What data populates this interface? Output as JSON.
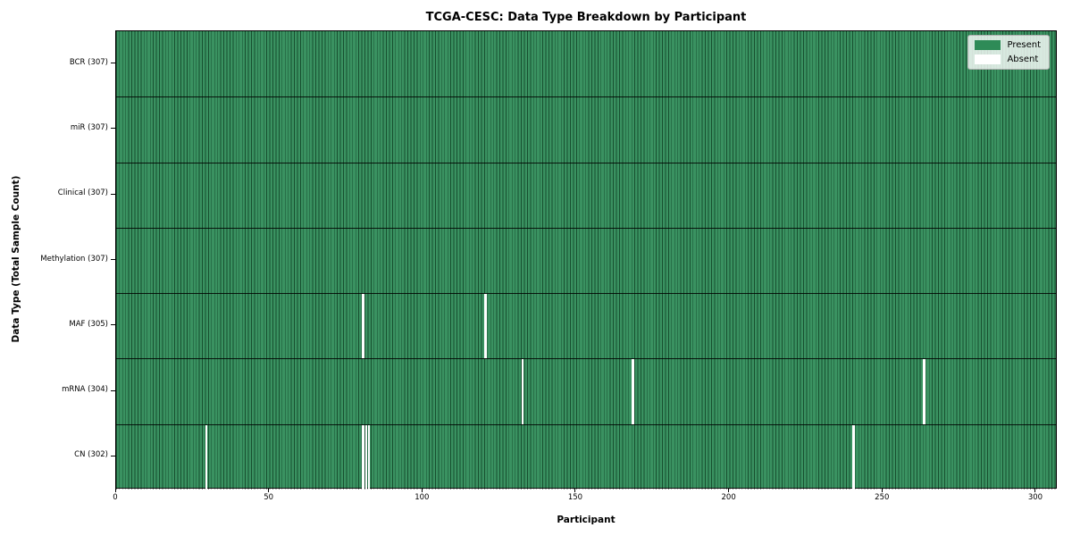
{
  "chart_data": {
    "type": "heatmap",
    "title": "TCGA-CESC: Data Type Breakdown by Participant",
    "xlabel": "Participant",
    "ylabel": "Data Type (Total Sample Count)",
    "n_participants": 307,
    "x_ticks": [
      0,
      50,
      100,
      150,
      200,
      250,
      300
    ],
    "grid": false,
    "legend_position": "upper right",
    "legend_items": [
      {
        "label": "Present",
        "color": "#2e8b57"
      },
      {
        "label": "Absent",
        "color": "#ffffff"
      }
    ],
    "rows": [
      {
        "label": "BCR",
        "total": 307,
        "absent_participants": []
      },
      {
        "label": "miR",
        "total": 307,
        "absent_participants": []
      },
      {
        "label": "Clinical",
        "total": 307,
        "absent_participants": []
      },
      {
        "label": "Methylation",
        "total": 307,
        "absent_participants": []
      },
      {
        "label": "MAF",
        "total": 305,
        "absent_participants": [
          80,
          120
        ]
      },
      {
        "label": "mRNA",
        "total": 304,
        "absent_participants": [
          132,
          168,
          263
        ]
      },
      {
        "label": "CN",
        "total": 302,
        "absent_participants": [
          29,
          80,
          81,
          82,
          240
        ]
      }
    ],
    "ytick_label_format": "{label} ({total})",
    "colors": {
      "present": "#2e8b57",
      "absent": "#ffffff",
      "cell_edge": "rgba(0,20,8,0.5)",
      "row_separator": "rgba(0,0,0,0.85)",
      "plot_border": "#000000"
    }
  }
}
